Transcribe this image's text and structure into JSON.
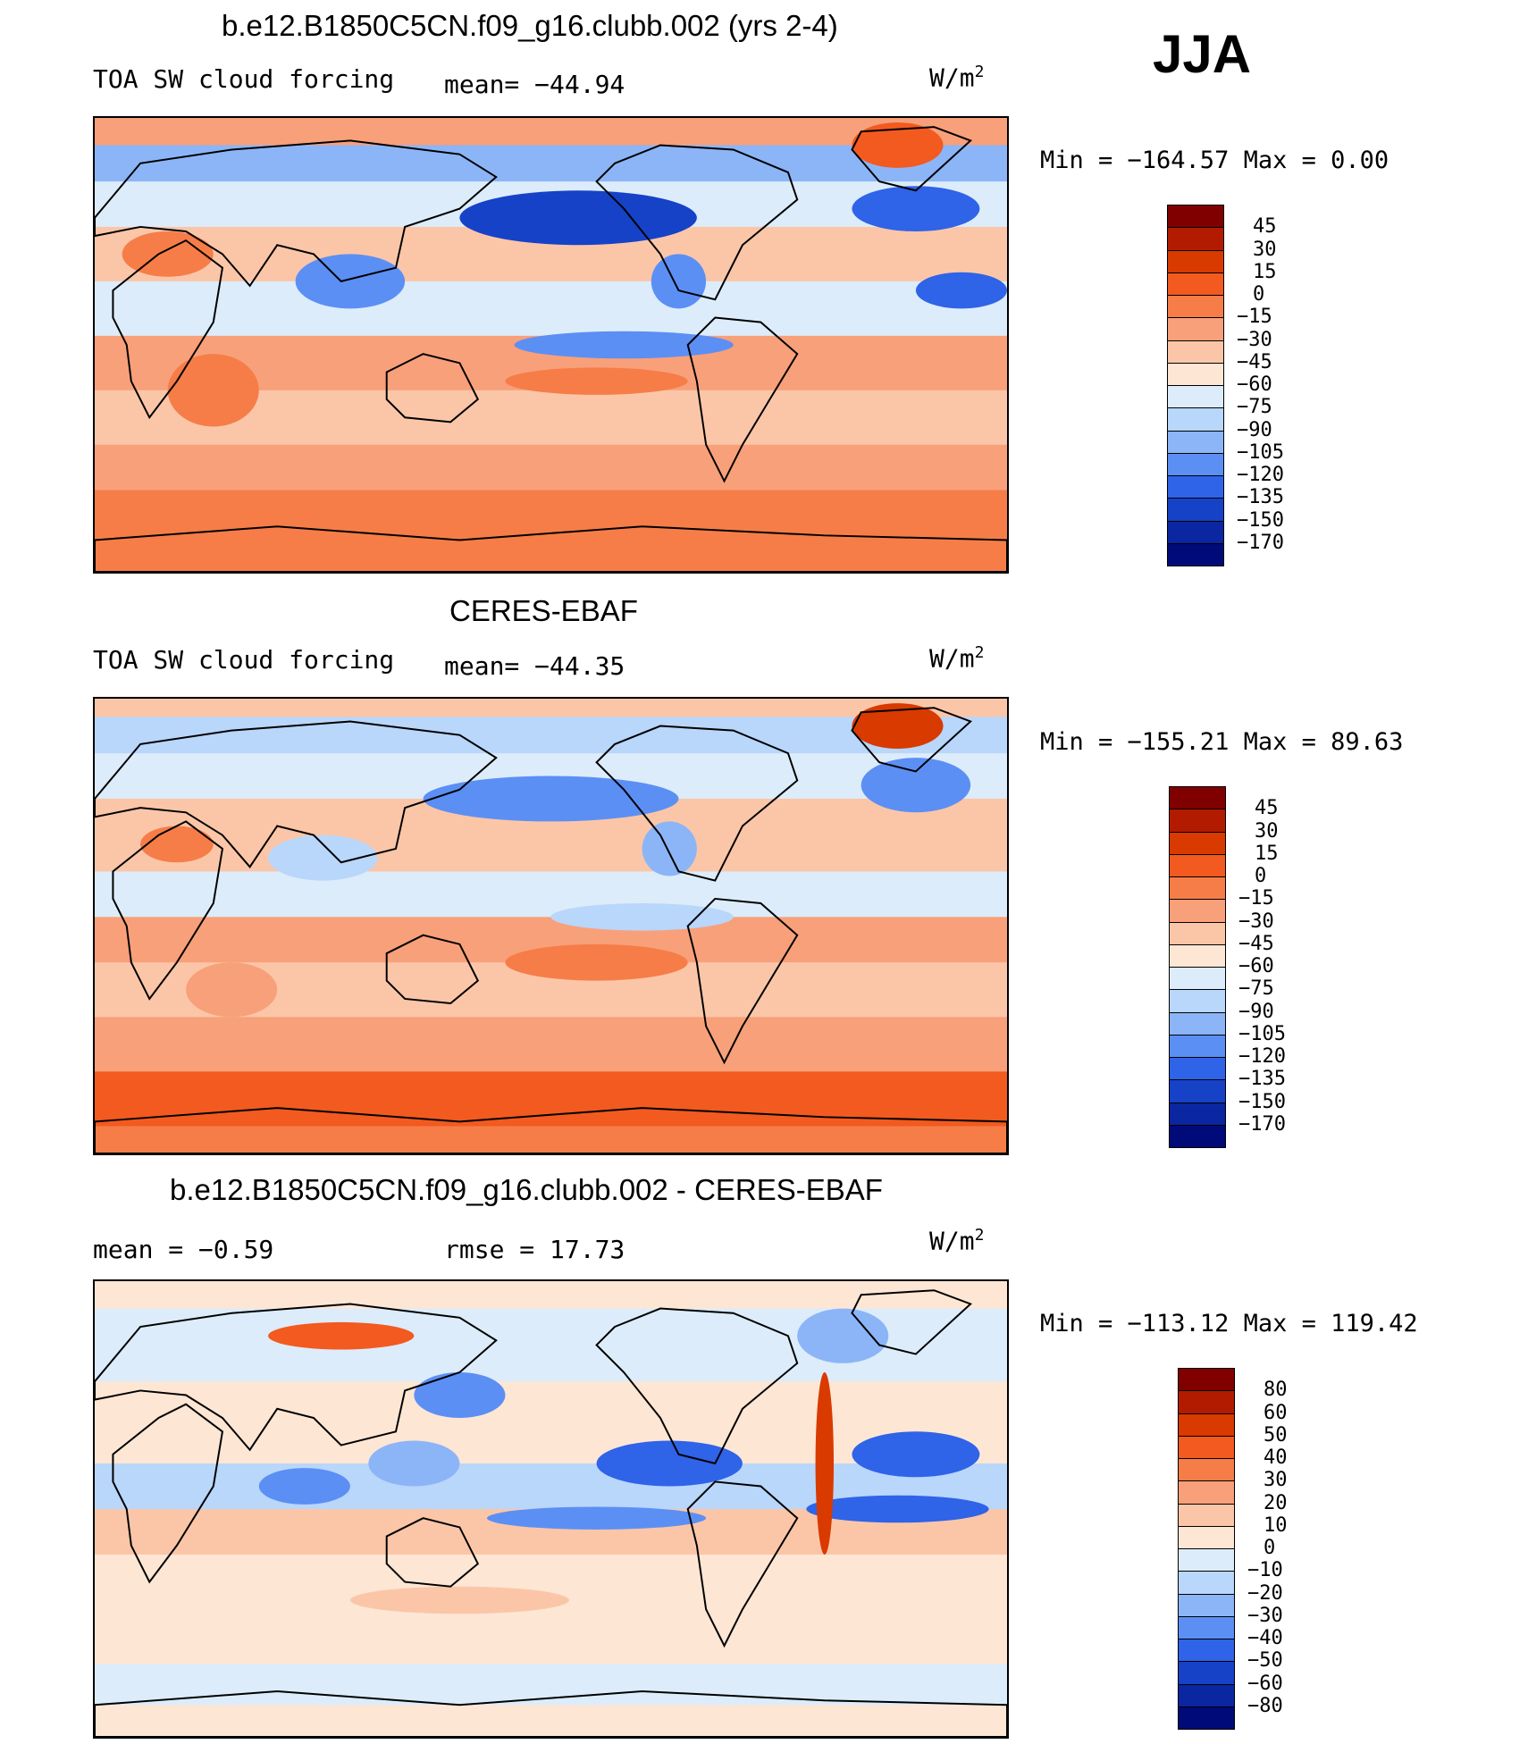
{
  "season": "JJA",
  "panels": [
    {
      "title": "b.e12.B1850C5CN.f09_g16.clubb.002 (yrs 2-4)",
      "left_label": "TOA SW cloud forcing",
      "mid_label": "mean= −44.94",
      "units": "W/m",
      "units_sup": "2",
      "minmax": "Min = −164.57 Max =    0.00",
      "kind": "model"
    },
    {
      "title": "CERES-EBAF",
      "left_label": "TOA SW cloud forcing",
      "mid_label": "mean= −44.35",
      "units": "W/m",
      "units_sup": "2",
      "minmax": "Min = −155.21 Max =  89.63",
      "kind": "obs"
    },
    {
      "title": "b.e12.B1850C5CN.f09_g16.clubb.002 - CERES-EBAF",
      "left_label": "mean =   −0.59",
      "mid_label": "rmse =   17.73",
      "units": "W/m",
      "units_sup": "2",
      "minmax": "Min = −113.12 Max = 119.42",
      "kind": "diff"
    }
  ],
  "chart_data": [
    {
      "type": "heatmap",
      "title": "b.e12.B1850C5CN.f09_g16.clubb.002 (yrs 2-4)",
      "variable": "TOA SW cloud forcing",
      "units": "W/m2",
      "mean": -44.94,
      "min": -164.57,
      "max": 0.0,
      "contour_levels": [
        45,
        30,
        15,
        0,
        -15,
        -30,
        -45,
        -60,
        -75,
        -90,
        -105,
        -120,
        -135,
        -150,
        -170
      ],
      "colorbar_labels": [
        "45",
        "30",
        "15",
        "0",
        "−15",
        "−30",
        "−45",
        "−60",
        "−75",
        "−90",
        "−105",
        "−120",
        "−135",
        "−150",
        "−170"
      ],
      "colors": [
        "#800000",
        "#b31b00",
        "#d93a00",
        "#f25a1f",
        "#f67d48",
        "#f8a07a",
        "#fbc6a8",
        "#fde6d4",
        "#dcecfa",
        "#b9d6fb",
        "#8cb5f7",
        "#5c8ff4",
        "#2f63e8",
        "#1642c8",
        "#0a26a0",
        "#000a78"
      ]
    },
    {
      "type": "heatmap",
      "title": "CERES-EBAF",
      "variable": "TOA SW cloud forcing",
      "units": "W/m2",
      "mean": -44.35,
      "min": -155.21,
      "max": 89.63,
      "contour_levels": [
        45,
        30,
        15,
        0,
        -15,
        -30,
        -45,
        -60,
        -75,
        -90,
        -105,
        -120,
        -135,
        -150,
        -170
      ],
      "colorbar_labels": [
        "45",
        "30",
        "15",
        "0",
        "−15",
        "−30",
        "−45",
        "−60",
        "−75",
        "−90",
        "−105",
        "−120",
        "−135",
        "−150",
        "−170"
      ],
      "colors": [
        "#800000",
        "#b31b00",
        "#d93a00",
        "#f25a1f",
        "#f67d48",
        "#f8a07a",
        "#fbc6a8",
        "#fde6d4",
        "#dcecfa",
        "#b9d6fb",
        "#8cb5f7",
        "#5c8ff4",
        "#2f63e8",
        "#1642c8",
        "#0a26a0",
        "#000a78"
      ]
    },
    {
      "type": "heatmap",
      "title": "b.e12.B1850C5CN.f09_g16.clubb.002 - CERES-EBAF",
      "units": "W/m2",
      "mean": -0.59,
      "rmse": 17.73,
      "min": -113.12,
      "max": 119.42,
      "contour_levels": [
        80,
        60,
        50,
        40,
        30,
        20,
        10,
        0,
        -10,
        -20,
        -30,
        -40,
        -50,
        -60,
        -80
      ],
      "colorbar_labels": [
        "80",
        "60",
        "50",
        "40",
        "30",
        "20",
        "10",
        "0",
        "−10",
        "−20",
        "−30",
        "−40",
        "−50",
        "−60",
        "−80"
      ],
      "colors": [
        "#800000",
        "#b31b00",
        "#d93a00",
        "#f25a1f",
        "#f67d48",
        "#f8a07a",
        "#fbc6a8",
        "#fde6d4",
        "#dcecfa",
        "#b9d6fb",
        "#8cb5f7",
        "#5c8ff4",
        "#2f63e8",
        "#1642c8",
        "#0a26a0",
        "#000a78"
      ]
    }
  ]
}
